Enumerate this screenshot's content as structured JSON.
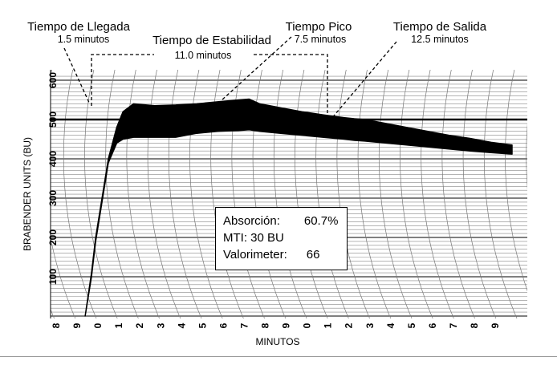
{
  "chart_data": {
    "type": "line",
    "title": "",
    "xlabel": "MINUTOS",
    "ylabel": "BRABENDER UNITS (BU)",
    "ylim": [
      0,
      600
    ],
    "y_ticks": [
      100,
      200,
      300,
      400,
      500,
      600
    ],
    "y_tick_labels": [
      "100",
      "200",
      "300",
      "400",
      "500",
      "600"
    ],
    "x_tick_labels": [
      "8",
      "9",
      "0",
      "1",
      "2",
      "3",
      "4",
      "5",
      "6",
      "7",
      "8",
      "9",
      "0",
      "1",
      "2",
      "3",
      "4",
      "5",
      "6",
      "7",
      "8",
      "9"
    ],
    "reference_line_bu": 500,
    "grid": true,
    "series": [
      {
        "x": [
          -0.3,
          0.0,
          0.2,
          0.5,
          0.8,
          1.2,
          1.5,
          2.0,
          3.0,
          4.0,
          5.0,
          6.0,
          7.0,
          7.5,
          8.0,
          9.0,
          10.0,
          11.0,
          12.0,
          12.5,
          13.0,
          14.0,
          15.0,
          16.0,
          17.0,
          18.0,
          19.0,
          20.0
        ],
        "upper": [
          0,
          110,
          200,
          300,
          400,
          480,
          520,
          540,
          535,
          537,
          540,
          545,
          550,
          552,
          540,
          530,
          520,
          512,
          505,
          502,
          500,
          490,
          480,
          470,
          460,
          452,
          442,
          435
        ],
        "lower": [
          0,
          100,
          190,
          290,
          390,
          440,
          450,
          455,
          455,
          455,
          465,
          470,
          472,
          474,
          470,
          465,
          460,
          455,
          450,
          447,
          445,
          440,
          435,
          430,
          425,
          420,
          416,
          412
        ]
      }
    ],
    "annotations": [
      {
        "label": "Tiempo de Llegada",
        "value": "1.5 minutos"
      },
      {
        "label": "Tiempo de Estabilidad",
        "value": "11.0 minutos"
      },
      {
        "label": "Tiempo Pico",
        "value": "7.5 minutos"
      },
      {
        "label": "Tiempo de Salida",
        "value": "12.5 minutos"
      }
    ]
  },
  "info_box": {
    "absorcion_label": "Absorción:",
    "absorcion_value": "60.7%",
    "mti": "MTI:  30 BU",
    "valorimeter_label": "Valorimeter:",
    "valorimeter_value": "66"
  }
}
